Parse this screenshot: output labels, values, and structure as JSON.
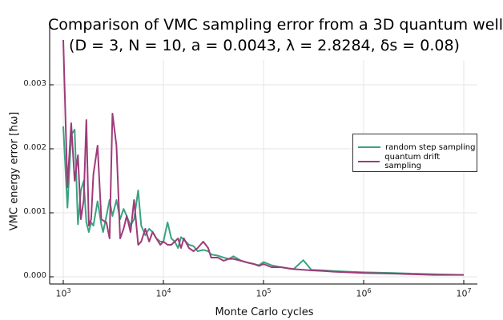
{
  "colors": {
    "random": "#3aa37f",
    "drift": "#9e3b7a"
  },
  "chart_data": {
    "type": "line",
    "title_line1": "Comparison of VMC sampling error from a 3D quantum well",
    "title_line2": "(D = 3, N = 10, a = 0.0043, λ = 2.8284, δs = 0.08)",
    "xlabel": "Monte Carlo cycles",
    "ylabel": "VMC energy error [ħω]",
    "xscale": "log",
    "xlim": [
      1000,
      10000000
    ],
    "ylim": [
      -7e-05,
      0.0038
    ],
    "x_ticks": [
      {
        "base": "10",
        "exp": "3",
        "value": 1000
      },
      {
        "base": "10",
        "exp": "4",
        "value": 10000
      },
      {
        "base": "10",
        "exp": "5",
        "value": 100000
      },
      {
        "base": "10",
        "exp": "6",
        "value": 1000000
      },
      {
        "base": "10",
        "exp": "7",
        "value": 10000000
      }
    ],
    "y_ticks": [
      {
        "label": "0.000",
        "value": 0
      },
      {
        "label": "0.001",
        "value": 0.001
      },
      {
        "label": "0.002",
        "value": 0.002
      },
      {
        "label": "0.003",
        "value": 0.003
      }
    ],
    "grid": true,
    "legend_position": "right",
    "x": [
      1000,
      1100,
      1200,
      1300,
      1400,
      1500,
      1600,
      1700,
      1800,
      1900,
      2000,
      2200,
      2400,
      2500,
      2700,
      2900,
      3100,
      3400,
      3700,
      4000,
      4300,
      4700,
      5100,
      5600,
      6000,
      6600,
      7200,
      7800,
      8500,
      9300,
      10000,
      11000,
      12000,
      13000,
      14000,
      15000,
      16000,
      18000,
      20000,
      22000,
      25000,
      28000,
      30000,
      35000,
      40000,
      45000,
      50000,
      60000,
      70000,
      80000,
      90000,
      100000,
      120000,
      150000,
      180000,
      200000,
      250000,
      300000,
      400000,
      500000,
      700000,
      1000000,
      2000000,
      3000000,
      5000000,
      10000000
    ],
    "series": [
      {
        "name": "random step sampling",
        "values": [
          0.00235,
          0.00108,
          0.00222,
          0.0023,
          0.00082,
          0.00135,
          0.0015,
          0.00085,
          0.0007,
          0.00085,
          0.0008,
          0.00118,
          0.00082,
          0.0007,
          0.00095,
          0.0012,
          0.00095,
          0.0012,
          0.0009,
          0.00106,
          0.00095,
          0.0008,
          0.0009,
          0.00135,
          0.0008,
          0.00065,
          0.00075,
          0.0007,
          0.0006,
          0.00055,
          0.00055,
          0.00085,
          0.0006,
          0.00055,
          0.00045,
          0.00062,
          0.00058,
          0.0005,
          0.00048,
          0.0004,
          0.00042,
          0.0004,
          0.00035,
          0.00033,
          0.0003,
          0.00028,
          0.00032,
          0.00025,
          0.00022,
          0.0002,
          0.00018,
          0.00023,
          0.00018,
          0.00015,
          0.00013,
          0.00012,
          0.00026,
          0.00011,
          0.0001,
          9e-05,
          8e-05,
          7e-05,
          6e-05,
          5e-05,
          4e-05,
          3e-05
        ]
      },
      {
        "name": "quantum drift sampling",
        "values": [
          0.0037,
          0.0014,
          0.0024,
          0.0015,
          0.0019,
          0.0009,
          0.0012,
          0.00245,
          0.0008,
          0.0009,
          0.0016,
          0.00205,
          0.0009,
          0.00088,
          0.00085,
          0.0006,
          0.00255,
          0.00205,
          0.0006,
          0.00075,
          0.00095,
          0.0007,
          0.0012,
          0.0005,
          0.00055,
          0.00075,
          0.00055,
          0.0007,
          0.0006,
          0.0005,
          0.00055,
          0.0005,
          0.0005,
          0.00055,
          0.0006,
          0.00045,
          0.0006,
          0.00045,
          0.0004,
          0.00045,
          0.00055,
          0.00045,
          0.0003,
          0.0003,
          0.00025,
          0.00028,
          0.00028,
          0.00025,
          0.00022,
          0.0002,
          0.00017,
          0.0002,
          0.00015,
          0.00015,
          0.00013,
          0.00012,
          0.00011,
          0.0001,
          9e-05,
          8e-05,
          7e-05,
          6e-05,
          5e-05,
          4e-05,
          3e-05,
          3e-05
        ]
      }
    ]
  }
}
